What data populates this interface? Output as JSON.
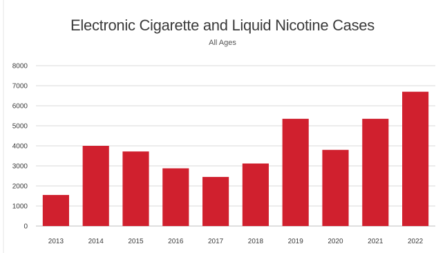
{
  "chart_data": {
    "type": "bar",
    "title": "Electronic Cigarette and Liquid Nicotine Cases",
    "subtitle": "All Ages",
    "xlabel": "",
    "ylabel": "",
    "categories": [
      "2013",
      "2014",
      "2015",
      "2016",
      "2017",
      "2018",
      "2019",
      "2020",
      "2021",
      "2022"
    ],
    "values": [
      1550,
      4000,
      3720,
      2880,
      2450,
      3120,
      5350,
      3800,
      5350,
      6700
    ],
    "ylim": [
      0,
      8000
    ],
    "yticks": [
      0,
      1000,
      2000,
      3000,
      4000,
      5000,
      6000,
      7000,
      8000
    ],
    "grid": true,
    "legend": "none",
    "bar_color": "#d0202e"
  }
}
